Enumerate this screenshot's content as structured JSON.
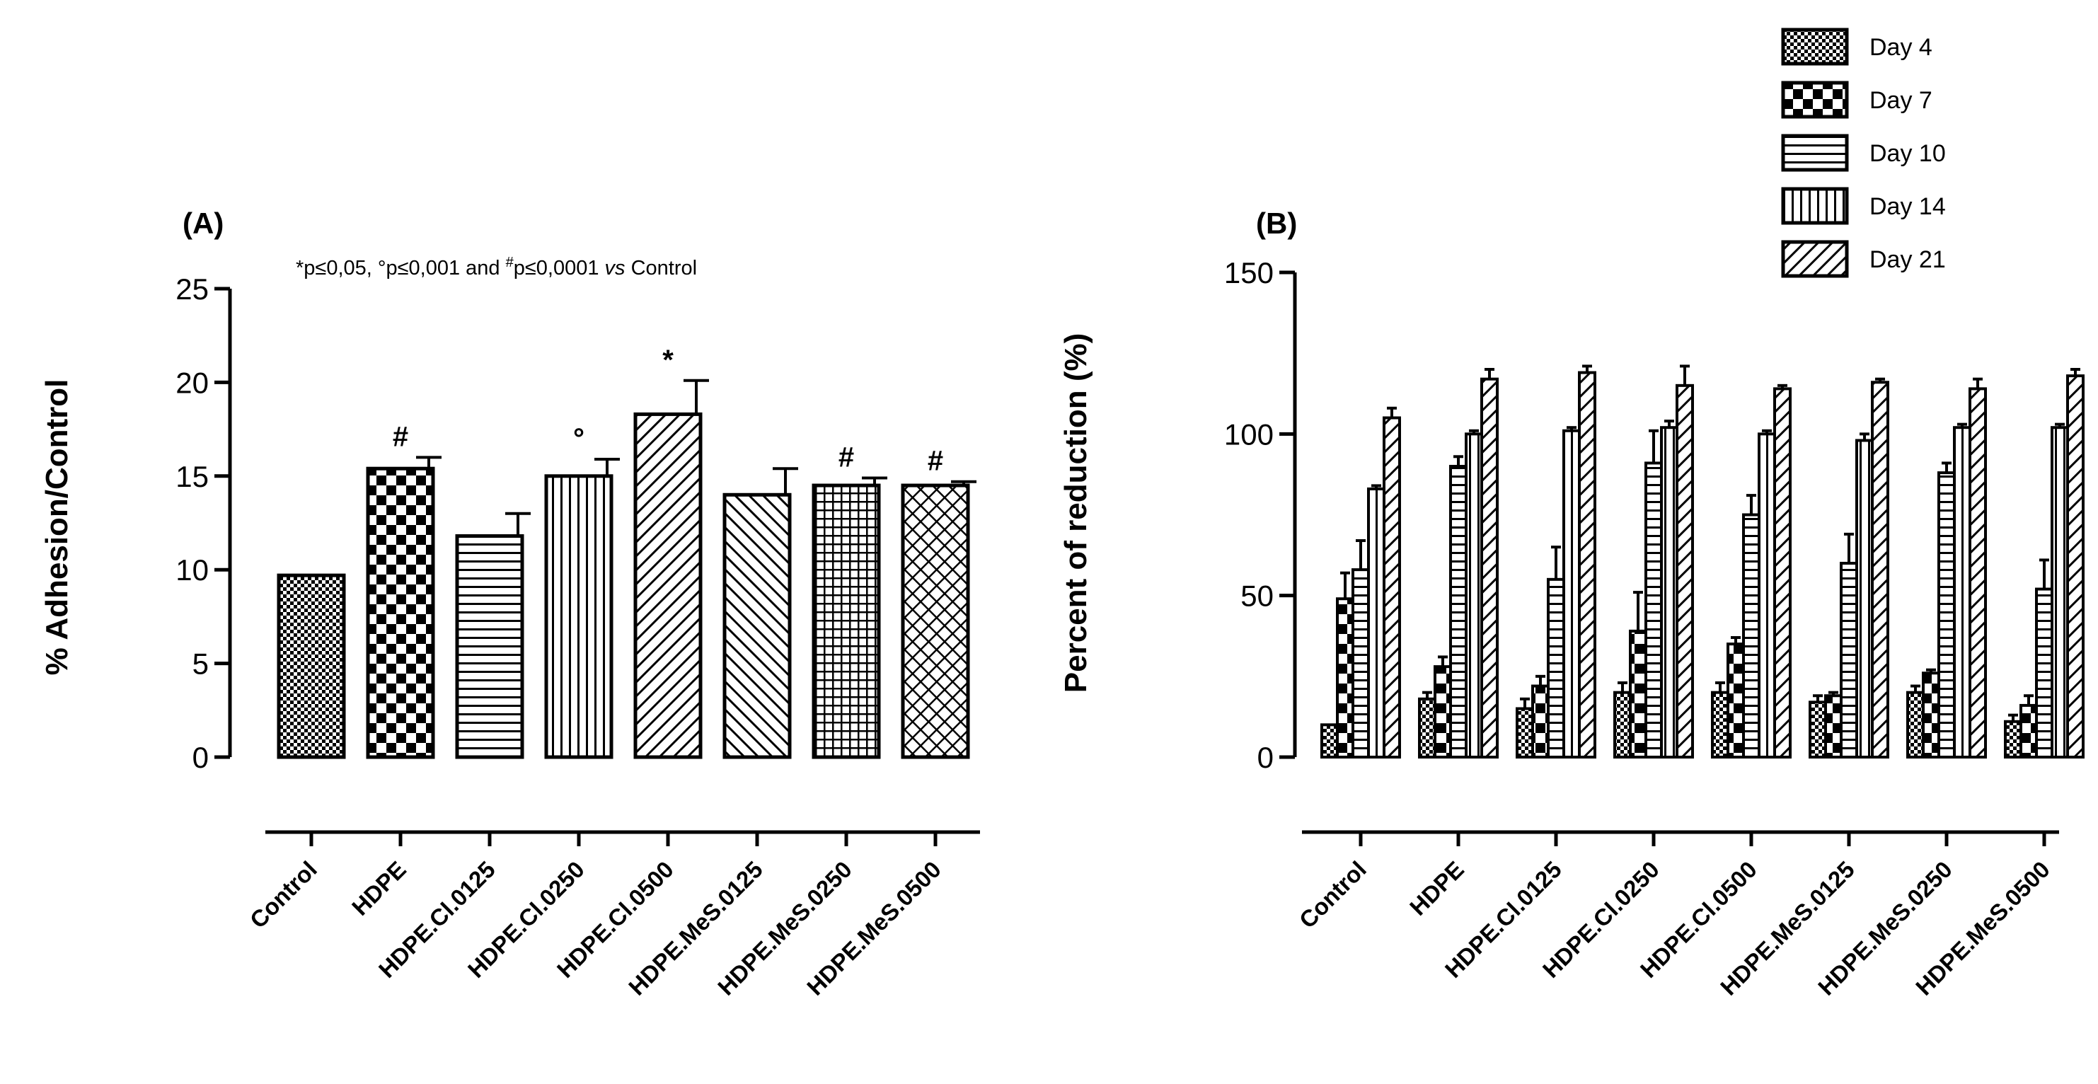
{
  "chart_data": [
    {
      "panel_label": "(A)",
      "type": "bar",
      "subtitle_parts": {
        "a": "*p≤0,05, °p≤0,001 and ",
        "sup": "#",
        "b": "p≤0,0001 ",
        "vs": "vs",
        "c": " Control"
      },
      "ylabel": "% Adhesion/Control",
      "ylim": [
        0,
        25
      ],
      "yticks": [
        0,
        5,
        10,
        15,
        20,
        25
      ],
      "categories": [
        "Control",
        "HDPE",
        "HDPE.Cl.0125",
        "HDPE.Cl.0250",
        "HDPE.Cl.0500",
        "HDPE.MeS.0125",
        "HDPE.MeS.0250",
        "HDPE.MeS.0500"
      ],
      "values": [
        9.7,
        15.4,
        11.8,
        15.0,
        18.3,
        14.0,
        14.5,
        14.5
      ],
      "errors": [
        0,
        0.6,
        1.2,
        0.9,
        1.8,
        1.4,
        0.4,
        0.2
      ],
      "patterns": [
        "checker-fine",
        "checker",
        "hlines",
        "vlines",
        "diag-left",
        "diag-right",
        "grid",
        "crosshatch"
      ],
      "significance": [
        "",
        "#",
        "",
        "°",
        "*",
        "",
        "#",
        "#"
      ]
    },
    {
      "panel_label": "(B)",
      "type": "bar",
      "ylabel": "Percent of reduction (%)",
      "ylim": [
        0,
        150
      ],
      "yticks": [
        0,
        50,
        100,
        150
      ],
      "categories": [
        "Control",
        "HDPE",
        "HDPE.Cl.0125",
        "HDPE.Cl.0250",
        "HDPE.Cl.0500",
        "HDPE.MeS.0125",
        "HDPE.MeS.0250",
        "HDPE.MeS.0500"
      ],
      "legend": [
        "Day 4",
        "Day 7",
        "Day 10",
        "Day 14",
        "Day 21"
      ],
      "legend_position": "top-right",
      "series": [
        {
          "name": "Day 4",
          "pattern": "checker-fine",
          "values": [
            10,
            18,
            15,
            20,
            20,
            17,
            20,
            11
          ],
          "errors": [
            0,
            2,
            3,
            3,
            3,
            2,
            2,
            2
          ]
        },
        {
          "name": "Day 7",
          "pattern": "checker",
          "values": [
            49,
            28,
            22,
            39,
            35,
            19,
            26,
            16
          ],
          "errors": [
            8,
            3,
            3,
            12,
            2,
            1,
            1,
            3
          ]
        },
        {
          "name": "Day 10",
          "pattern": "hlines",
          "values": [
            58,
            90,
            55,
            91,
            75,
            60,
            88,
            52
          ],
          "errors": [
            9,
            3,
            10,
            10,
            6,
            9,
            3,
            9
          ]
        },
        {
          "name": "Day 14",
          "pattern": "vlines",
          "values": [
            83,
            100,
            101,
            102,
            100,
            98,
            102,
            102
          ],
          "errors": [
            1,
            1,
            1,
            2,
            1,
            2,
            1,
            1
          ]
        },
        {
          "name": "Day 21",
          "pattern": "diag-left",
          "values": [
            105,
            117,
            119,
            115,
            114,
            116,
            114,
            118
          ],
          "errors": [
            3,
            3,
            2,
            6,
            1,
            1,
            3,
            2
          ]
        }
      ]
    }
  ]
}
